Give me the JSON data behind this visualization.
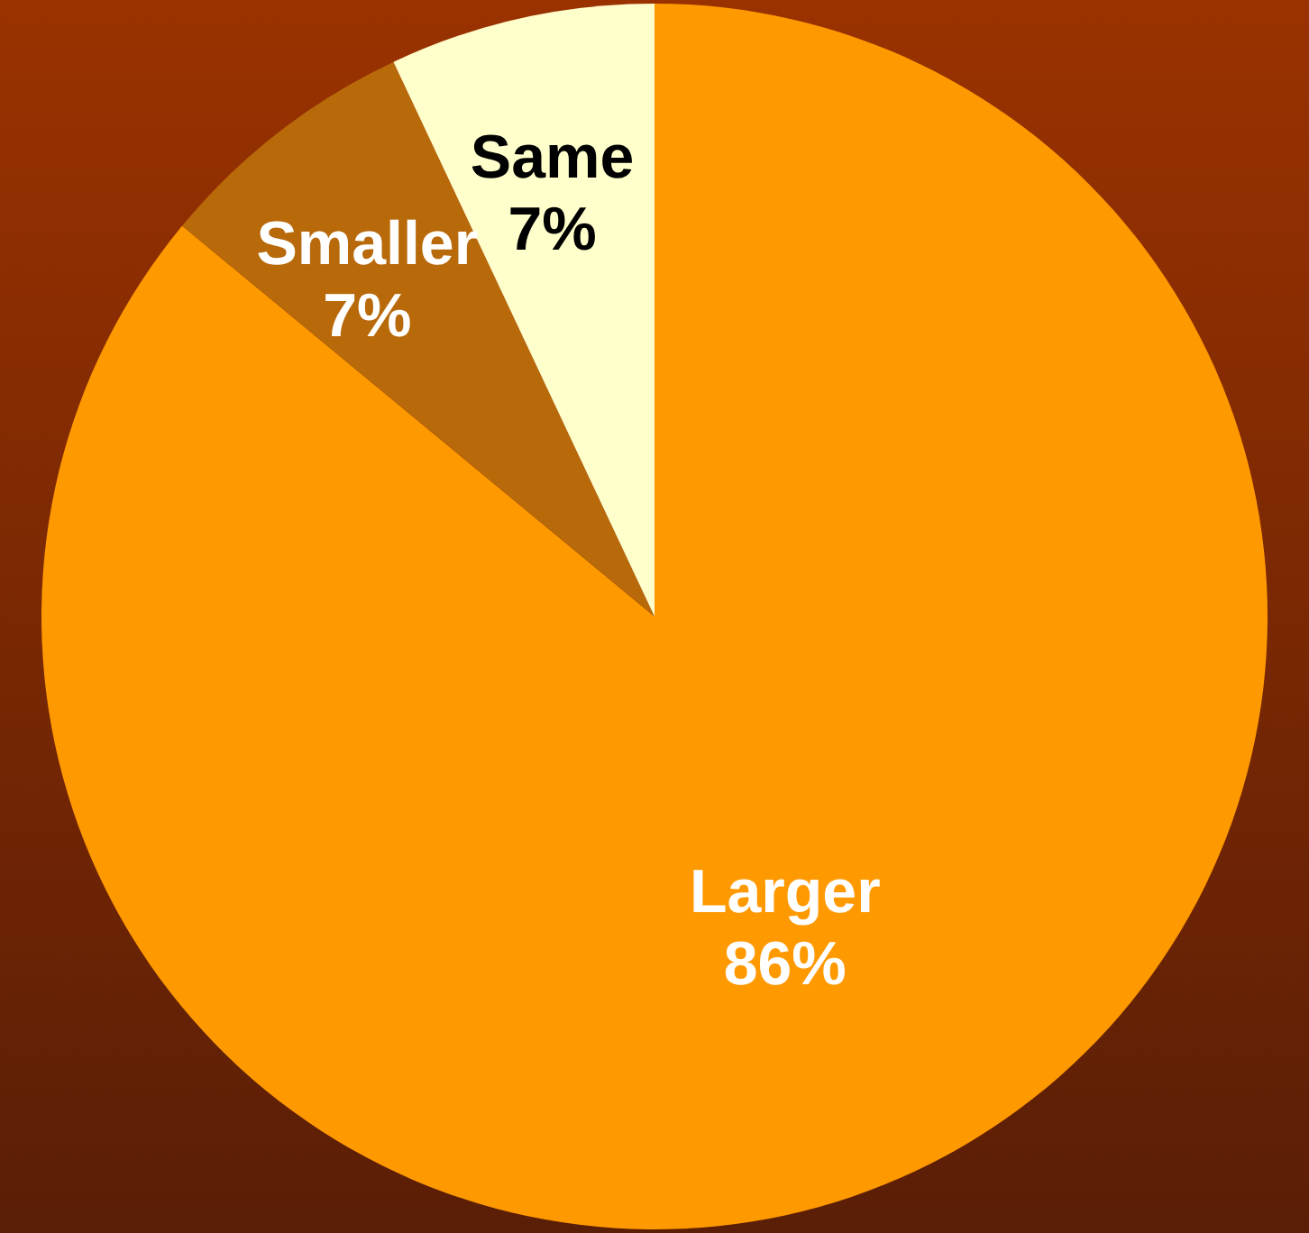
{
  "chart_data": {
    "type": "pie",
    "categories": [
      "Larger",
      "Smaller",
      "Same"
    ],
    "values": [
      86,
      7,
      7
    ],
    "colors": [
      "#ff9900",
      "#b8690a",
      "#ffffcc"
    ],
    "value_labels": [
      "86%",
      "7%",
      "7%"
    ]
  }
}
